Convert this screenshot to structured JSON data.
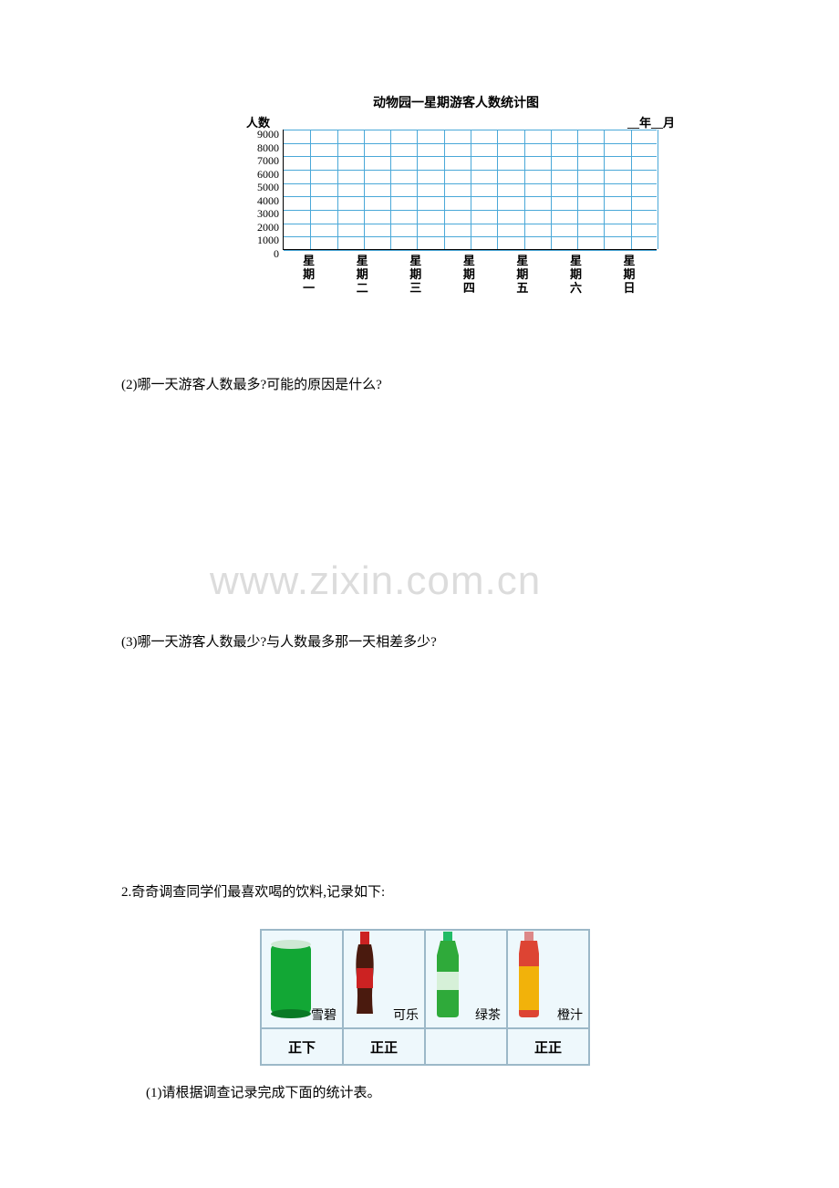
{
  "chart": {
    "title": "动物园一星期游客人数统计图",
    "y_axis_label": "人数",
    "date_label": "__年__月",
    "y_ticks": [
      "9000",
      "8000",
      "7000",
      "6000",
      "5000",
      "4000",
      "3000",
      "2000",
      "1000",
      "0"
    ],
    "x_labels": [
      "星期一",
      "星期二",
      "星期三",
      "星期四",
      "星期五",
      "星期六",
      "星期日"
    ],
    "grid_color": "#4aa8d8",
    "row_count": 9,
    "col_count": 14
  },
  "questions": {
    "q2": "(2)哪一天游客人数最多?可能的原因是什么?",
    "q3": "(3)哪一天游客人数最少?与人数最多那一天相差多少?",
    "p2_intro": "2.奇奇调查同学们最喜欢喝的饮料,记录如下:",
    "q4": "(1)请根据调查记录完成下面的统计表。"
  },
  "watermark": "www.zixin.com.cn",
  "drinks": {
    "items": [
      {
        "name": "雪碧",
        "tally": "正下",
        "color": "#12a735",
        "type": "can"
      },
      {
        "name": "可乐",
        "tally": "正正",
        "color": "#4a1a0e",
        "type": "cola"
      },
      {
        "name": "绿茶",
        "tally": "",
        "color": "#2faa3a",
        "type": "bottle"
      },
      {
        "name": "橙汁",
        "tally": "正正",
        "color": "#f2b20a",
        "type": "juice"
      }
    ]
  }
}
